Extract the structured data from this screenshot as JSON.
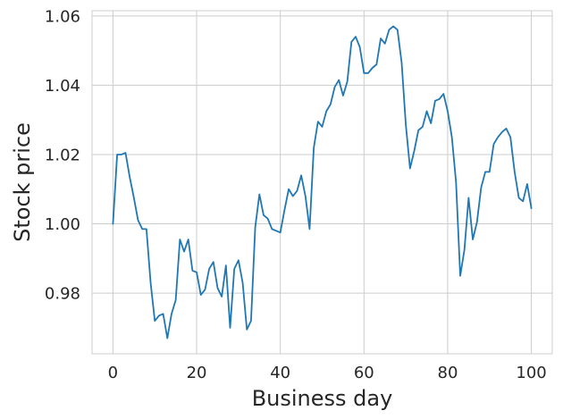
{
  "chart_data": {
    "type": "line",
    "title": "",
    "xlabel": "Business day",
    "ylabel": "Stock price",
    "xlim": [
      -5,
      105
    ],
    "ylim": [
      0.9625,
      1.0615
    ],
    "x_ticks": [
      0,
      20,
      40,
      60,
      80,
      100
    ],
    "y_ticks": [
      0.98,
      1.0,
      1.02,
      1.04,
      1.06
    ],
    "x_tick_labels": [
      "0",
      "20",
      "40",
      "60",
      "80",
      "100"
    ],
    "y_tick_labels": [
      "0.98",
      "1.00",
      "1.02",
      "1.04",
      "1.06"
    ],
    "grid": true,
    "colors": {
      "line": "#1f77b4",
      "grid": "#cccccc",
      "text": "#262626"
    },
    "series": [
      {
        "x": [
          0,
          1,
          2,
          3,
          4,
          5,
          6,
          7,
          8,
          9,
          10,
          11,
          12,
          13,
          14,
          15,
          16,
          17,
          18,
          19,
          20,
          21,
          22,
          23,
          24,
          25,
          26,
          27,
          28,
          29,
          30,
          31,
          32,
          33,
          34,
          35,
          36,
          37,
          38,
          39,
          40,
          41,
          42,
          43,
          44,
          45,
          46,
          47,
          48,
          49,
          50,
          51,
          52,
          53,
          54,
          55,
          56,
          57,
          58,
          59,
          60,
          61,
          62,
          63,
          64,
          65,
          66,
          67,
          68,
          69,
          70,
          71,
          72,
          73,
          74,
          75,
          76,
          77,
          78,
          79,
          80,
          81,
          82,
          83,
          84,
          85,
          86,
          87,
          88,
          89,
          90,
          91,
          92,
          93,
          94,
          95,
          96,
          97,
          98,
          99,
          100
        ],
        "values": [
          1.0,
          1.02,
          1.02,
          1.0205,
          1.0135,
          1.0075,
          1.001,
          0.9985,
          0.9985,
          0.983,
          0.972,
          0.9735,
          0.974,
          0.967,
          0.974,
          0.978,
          0.9955,
          0.992,
          0.9955,
          0.9865,
          0.986,
          0.9795,
          0.981,
          0.987,
          0.989,
          0.9815,
          0.979,
          0.988,
          0.97,
          0.987,
          0.9895,
          0.983,
          0.9695,
          0.972,
          0.999,
          1.0085,
          1.0025,
          1.0015,
          0.9985,
          0.998,
          0.9975,
          1.004,
          1.01,
          1.008,
          1.0095,
          1.014,
          1.008,
          0.9985,
          1.022,
          1.0295,
          1.028,
          1.0325,
          1.0345,
          1.0395,
          1.0415,
          1.037,
          1.041,
          1.0525,
          1.054,
          1.051,
          1.0435,
          1.0435,
          1.045,
          1.046,
          1.0535,
          1.052,
          1.056,
          1.057,
          1.056,
          1.0465,
          1.0285,
          1.016,
          1.021,
          1.027,
          1.028,
          1.0325,
          1.029,
          1.0355,
          1.036,
          1.0375,
          1.0325,
          1.025,
          1.012,
          0.985,
          0.9925,
          1.0075,
          0.9955,
          1.0005,
          1.0105,
          1.015,
          1.015,
          1.023,
          1.025,
          1.0265,
          1.0275,
          1.025,
          1.015,
          1.0075,
          1.0065,
          1.0115,
          1.0045
        ]
      }
    ]
  }
}
